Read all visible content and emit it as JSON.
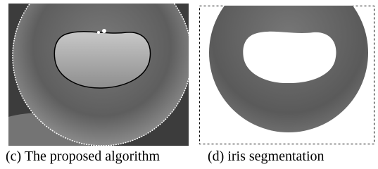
{
  "figure": {
    "panels": [
      {
        "caption": "(c) The proposed algorithm"
      },
      {
        "caption": "(d) iris segmentation"
      }
    ]
  }
}
